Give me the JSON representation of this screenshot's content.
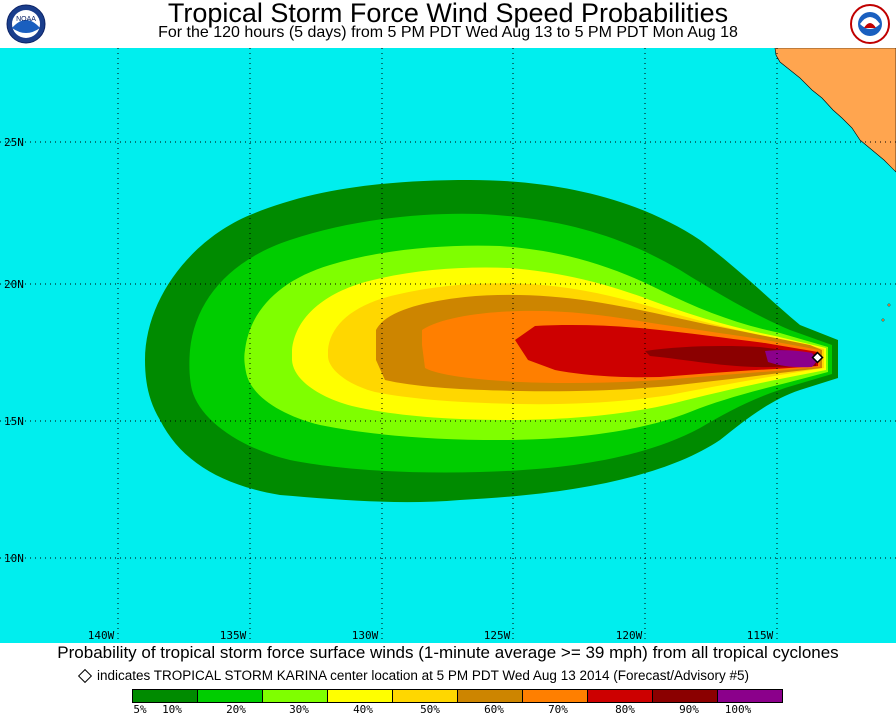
{
  "header": {
    "title": "Tropical Storm Force Wind Speed Probabilities",
    "subtitle": "For the 120 hours (5 days) from 5 PM PDT Wed Aug 13 to 5 PM PDT Mon Aug 18",
    "left_logo": "NOAA",
    "right_logo_icon": "national-weather-service-logo"
  },
  "map": {
    "ocean_color": "#00eeee",
    "land_color": "#ffa54f",
    "lat_labels": [
      "25N",
      "20N",
      "15N",
      "10N"
    ],
    "lon_labels": [
      "140W",
      "135W",
      "130W",
      "125W",
      "120W",
      "115W"
    ]
  },
  "footer": {
    "line1": "Probability of tropical storm force surface winds (1-minute average >= 39 mph) from all tropical cyclones",
    "line2": "indicates TROPICAL STORM KARINA center location at 5 PM PDT Wed Aug 13 2014 (Forecast/Advisory #5)"
  },
  "legend": {
    "colors": [
      "#008b00",
      "#00cd00",
      "#7fff00",
      "#ffff00",
      "#ffd700",
      "#cd8500",
      "#ff7f00",
      "#cd0000",
      "#8b0000",
      "#8b008b"
    ],
    "labels": [
      "5%",
      "10%",
      "20%",
      "30%",
      "40%",
      "50%",
      "60%",
      "70%",
      "80%",
      "90%",
      "100%"
    ]
  }
}
